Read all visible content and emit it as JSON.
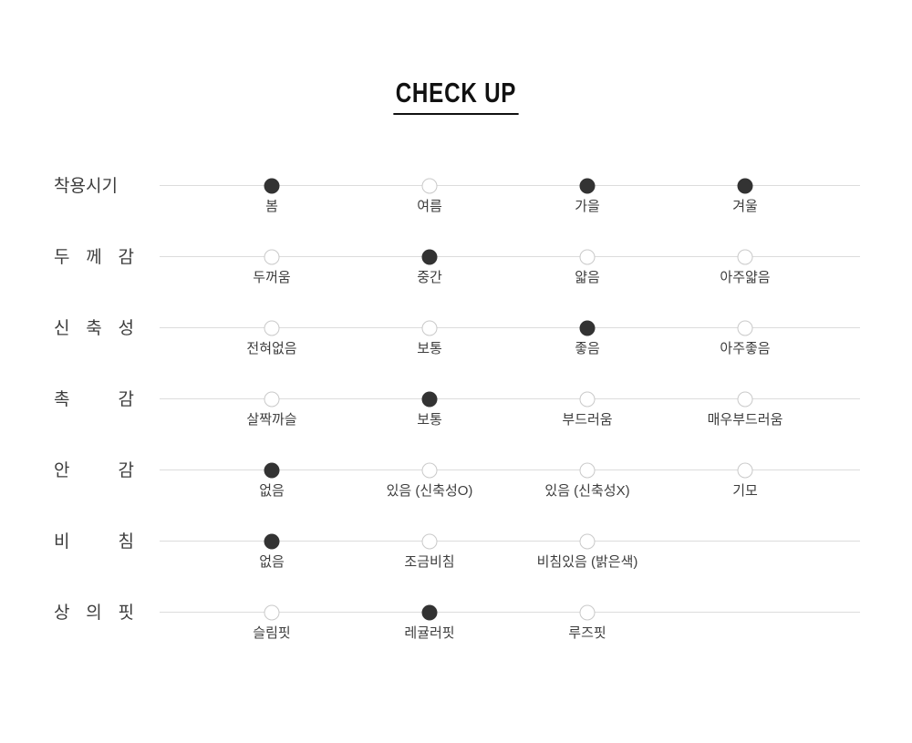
{
  "title": "CHECK UP",
  "colors": {
    "dot_filled": "#333333",
    "dot_empty_border": "#c9c9c9",
    "track_line": "#dcdcdc",
    "label_text": "#3d3d3d",
    "title_text": "#111111",
    "background": "#ffffff"
  },
  "chart_data": {
    "type": "table",
    "title": "CHECK UP",
    "legend_position": "none",
    "grid": "horizontal-track-lines",
    "rows": [
      {
        "label": "착용시기",
        "options": [
          {
            "label": "봄",
            "selected": true
          },
          {
            "label": "여름",
            "selected": false
          },
          {
            "label": "가을",
            "selected": true
          },
          {
            "label": "겨울",
            "selected": true
          }
        ]
      },
      {
        "label": "두 께 감",
        "options": [
          {
            "label": "두꺼움",
            "selected": false
          },
          {
            "label": "중간",
            "selected": true
          },
          {
            "label": "얇음",
            "selected": false
          },
          {
            "label": "아주얇음",
            "selected": false
          }
        ]
      },
      {
        "label": "신 축 성",
        "options": [
          {
            "label": "전혀없음",
            "selected": false
          },
          {
            "label": "보통",
            "selected": false
          },
          {
            "label": "좋음",
            "selected": true
          },
          {
            "label": "아주좋음",
            "selected": false
          }
        ]
      },
      {
        "label": "촉 감",
        "options": [
          {
            "label": "살짝까슬",
            "selected": false
          },
          {
            "label": "보통",
            "selected": true
          },
          {
            "label": "부드러움",
            "selected": false
          },
          {
            "label": "매우부드러움",
            "selected": false
          }
        ]
      },
      {
        "label": "안 감",
        "options": [
          {
            "label": "없음",
            "selected": true
          },
          {
            "label": "있음 (신축성O)",
            "selected": false
          },
          {
            "label": "있음 (신축성X)",
            "selected": false
          },
          {
            "label": "기모",
            "selected": false
          }
        ]
      },
      {
        "label": "비 침",
        "options": [
          {
            "label": "없음",
            "selected": true
          },
          {
            "label": "조금비침",
            "selected": false
          },
          {
            "label": "비침있음 (밝은색)",
            "selected": false
          }
        ]
      },
      {
        "label": "상 의 핏",
        "options": [
          {
            "label": "슬림핏",
            "selected": false
          },
          {
            "label": "레귤러핏",
            "selected": true
          },
          {
            "label": "루즈핏",
            "selected": false
          }
        ]
      }
    ]
  }
}
